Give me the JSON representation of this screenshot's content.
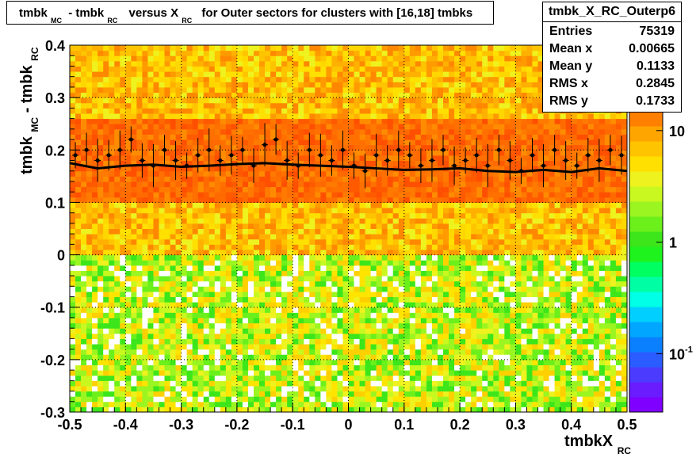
{
  "header": {
    "title_parts": {
      "a": "tmbk",
      "a_sub": "MC",
      "b": "- tmbk",
      "b_sub": "RC",
      "c": "versus X",
      "c_sub": "RC",
      "d": "for Outer sectors for clusters with [16,18] tmbks"
    }
  },
  "stats": {
    "name": "tmbk_X_RC_Outerp6",
    "rows": [
      {
        "label": "Entries",
        "value": "75319"
      },
      {
        "label": "Mean x",
        "value": "0.00665"
      },
      {
        "label": "Mean y",
        "value": "0.1133"
      },
      {
        "label": "RMS x",
        "value": "0.2845"
      },
      {
        "label": "RMS y",
        "value": "0.1733"
      }
    ]
  },
  "axes": {
    "xlabel_main": "tmbkX",
    "xlabel_sub": "RC",
    "ylabel_a": "tmbk",
    "ylabel_a_sub": "MC",
    "ylabel_b": "- tmbk",
    "ylabel_b_sub": "RC",
    "xticks": [
      "-0.5",
      "-0.4",
      "-0.3",
      "-0.2",
      "-0.1",
      "0",
      "0.1",
      "0.2",
      "0.3",
      "0.4",
      "0.5"
    ],
    "yticks": [
      "-0.3",
      "-0.2",
      "-0.1",
      "0",
      "0.1",
      "0.2",
      "0.3",
      "0.4"
    ]
  },
  "colorbar": {
    "labels": [
      {
        "text": "10",
        "sup": "",
        "value": 10
      },
      {
        "text": "1",
        "sup": "",
        "value": 1
      },
      {
        "text": "10",
        "sup": "-1",
        "value": 0.1
      }
    ],
    "colors": [
      "#7f00ff",
      "#6a1cff",
      "#4b3bff",
      "#2a5cff",
      "#0a80ff",
      "#00a6ff",
      "#00cfff",
      "#00ffe6",
      "#00ffa5",
      "#00ff60",
      "#1ef31e",
      "#3ce61a",
      "#6bf01c",
      "#9bf520",
      "#c8f81f",
      "#eef21e",
      "#ffe000",
      "#ffc400",
      "#ffa500",
      "#ff8000"
    ]
  },
  "chart_data": {
    "type": "heatmap",
    "title": "tmbk_MC - tmbk_RC versus X_RC for Outer sectors for clusters with [16,18] tmbks",
    "xlabel": "tmbkX_RC",
    "ylabel": "tmbk_MC - tmbk_RC",
    "xlim": [
      -0.5,
      0.5
    ],
    "ylim": [
      -0.3,
      0.4
    ],
    "z_scale": "log",
    "grid": true,
    "color_intensity_rows": [
      {
        "y_from": 0.26,
        "y_to": 0.4,
        "level": "medium"
      },
      {
        "y_from": 0.1,
        "y_to": 0.26,
        "level": "high"
      },
      {
        "y_from": 0.0,
        "y_to": 0.1,
        "level": "medium"
      },
      {
        "y_from": -0.3,
        "y_to": 0.0,
        "level": "low"
      }
    ],
    "profile": {
      "x": [
        -0.49,
        -0.47,
        -0.45,
        -0.43,
        -0.41,
        -0.39,
        -0.37,
        -0.35,
        -0.33,
        -0.31,
        -0.29,
        -0.27,
        -0.25,
        -0.23,
        -0.21,
        -0.19,
        -0.17,
        -0.15,
        -0.13,
        -0.11,
        -0.09,
        -0.07,
        -0.05,
        -0.03,
        -0.01,
        0.01,
        0.03,
        0.05,
        0.07,
        0.09,
        0.11,
        0.13,
        0.15,
        0.17,
        0.19,
        0.21,
        0.23,
        0.25,
        0.27,
        0.29,
        0.31,
        0.33,
        0.35,
        0.37,
        0.39,
        0.41,
        0.43,
        0.45,
        0.47,
        0.49
      ],
      "y": [
        0.19,
        0.2,
        0.18,
        0.19,
        0.2,
        0.22,
        0.18,
        0.17,
        0.2,
        0.18,
        0.17,
        0.19,
        0.2,
        0.18,
        0.19,
        0.2,
        0.17,
        0.21,
        0.22,
        0.18,
        0.17,
        0.2,
        0.19,
        0.18,
        0.2,
        0.17,
        0.16,
        0.19,
        0.18,
        0.2,
        0.19,
        0.17,
        0.18,
        0.2,
        0.17,
        0.18,
        0.19,
        0.17,
        0.2,
        0.18,
        0.16,
        0.19,
        0.17,
        0.2,
        0.18,
        0.17,
        0.19,
        0.18,
        0.2,
        0.19
      ]
    },
    "fit_curve": {
      "x": [
        -0.5,
        -0.45,
        -0.4,
        -0.35,
        -0.3,
        -0.25,
        -0.2,
        -0.15,
        -0.1,
        -0.05,
        0,
        0.05,
        0.1,
        0.15,
        0.2,
        0.25,
        0.3,
        0.35,
        0.4,
        0.45,
        0.5
      ],
      "y": [
        0.175,
        0.165,
        0.17,
        0.172,
        0.168,
        0.17,
        0.173,
        0.175,
        0.172,
        0.17,
        0.168,
        0.165,
        0.162,
        0.163,
        0.165,
        0.16,
        0.158,
        0.162,
        0.158,
        0.165,
        0.16
      ]
    }
  }
}
